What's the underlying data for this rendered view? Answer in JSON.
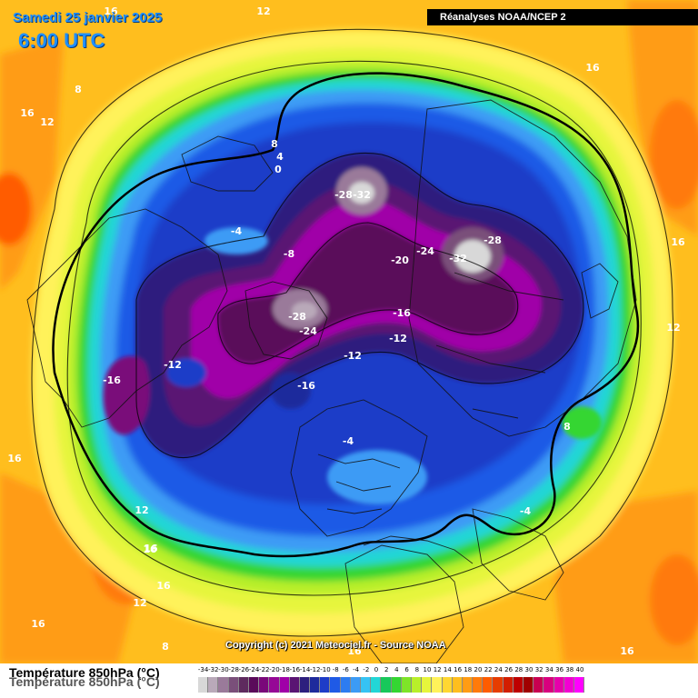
{
  "header": {
    "date": "Samedi 25 janvier 2025",
    "time": "6:00 UTC"
  },
  "source_box": "Réanalyses NOAA/NCEP 2",
  "copyright": "Copyright (c) 2021 Meteociel.fr - Source NOAA",
  "legend": {
    "title": "Température 850hPa (°C)",
    "values": [
      -34,
      -32,
      -30,
      -28,
      -26,
      -24,
      -22,
      -20,
      -18,
      -16,
      -14,
      -12,
      -10,
      -8,
      -6,
      -4,
      -2,
      0,
      2,
      4,
      6,
      8,
      10,
      12,
      14,
      16,
      18,
      20,
      22,
      24,
      26,
      28,
      30,
      32,
      34,
      36,
      38,
      40
    ],
    "colors": [
      "#d8d8d8",
      "#b9a9b9",
      "#9a7a9a",
      "#7a4f7a",
      "#5e2a5e",
      "#5a0a5a",
      "#7a087a",
      "#960896",
      "#a000a8",
      "#5a1473",
      "#2d1f7e",
      "#1e2a9c",
      "#1e3cc8",
      "#1f5ae6",
      "#2d7cf0",
      "#3c9bf5",
      "#36c3f3",
      "#22d6d6",
      "#18c85a",
      "#34d632",
      "#7ee428",
      "#b8ef2a",
      "#e6f53c",
      "#fff25a",
      "#ffd732",
      "#ffbe1e",
      "#ff9c14",
      "#ff7a0a",
      "#ff5c00",
      "#e63c00",
      "#d21e00",
      "#be0000",
      "#a00000",
      "#c80050",
      "#d8007e",
      "#e600aa",
      "#f200d2",
      "#ff00ff"
    ]
  },
  "map_labels": [
    {
      "text": "12",
      "kind": "temp"
    },
    {
      "text": "16",
      "kind": "temp"
    },
    {
      "text": "8",
      "kind": "temp"
    },
    {
      "text": "16",
      "kind": "temp"
    },
    {
      "text": "12",
      "kind": "temp"
    },
    {
      "text": "8",
      "kind": "temp"
    },
    {
      "text": "4",
      "kind": "temp"
    },
    {
      "text": "0",
      "kind": "temp"
    },
    {
      "text": "16",
      "kind": "temp"
    },
    {
      "text": "-28",
      "kind": "temp"
    },
    {
      "text": "-32",
      "kind": "temp"
    },
    {
      "text": "-4",
      "kind": "temp"
    },
    {
      "text": "-8",
      "kind": "temp"
    },
    {
      "text": "-24",
      "kind": "temp"
    },
    {
      "text": "-28",
      "kind": "temp"
    },
    {
      "text": "-20",
      "kind": "temp"
    },
    {
      "text": "-32",
      "kind": "temp"
    },
    {
      "text": "16",
      "kind": "temp"
    },
    {
      "text": "-16",
      "kind": "temp"
    },
    {
      "text": "-28",
      "kind": "temp"
    },
    {
      "text": "-24",
      "kind": "temp"
    },
    {
      "text": "-12",
      "kind": "temp"
    },
    {
      "text": "12",
      "kind": "temp"
    },
    {
      "text": "-12",
      "kind": "temp"
    },
    {
      "text": "-16",
      "kind": "temp"
    },
    {
      "text": "-12",
      "kind": "temp"
    },
    {
      "text": "-16",
      "kind": "temp"
    },
    {
      "text": "16",
      "kind": "temp"
    },
    {
      "text": "-4",
      "kind": "temp"
    },
    {
      "text": "8",
      "kind": "temp"
    },
    {
      "text": "16",
      "kind": "temp"
    },
    {
      "text": "-4",
      "kind": "temp"
    },
    {
      "text": "12",
      "kind": "temp"
    },
    {
      "text": "16",
      "kind": "temp"
    },
    {
      "text": "16",
      "kind": "temp"
    },
    {
      "text": "12",
      "kind": "temp"
    },
    {
      "text": "16",
      "kind": "temp"
    },
    {
      "text": "8",
      "kind": "temp"
    },
    {
      "text": "16",
      "kind": "temp"
    },
    {
      "text": "16",
      "kind": "temp"
    }
  ]
}
